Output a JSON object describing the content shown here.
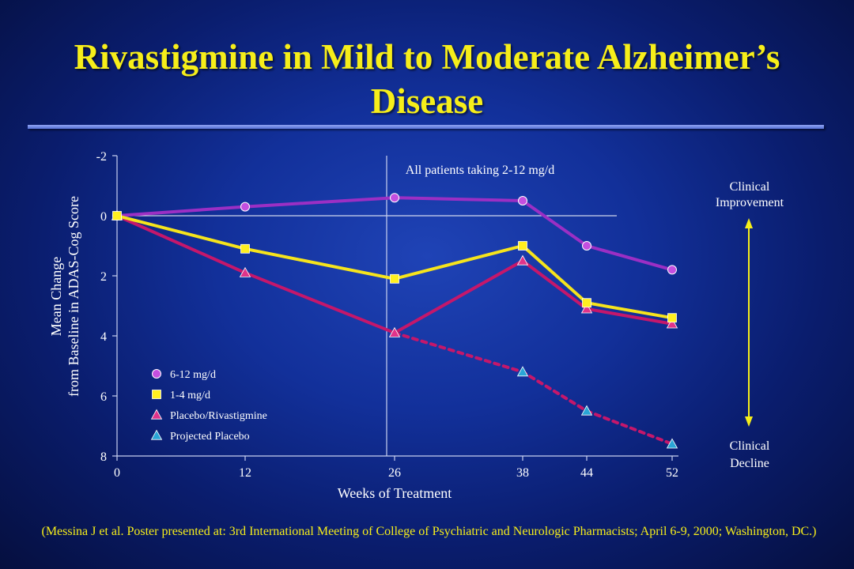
{
  "slide": {
    "title": "Rivastigmine in Mild to Moderate Alzheimer’s Disease",
    "citation": "(Messina J et al. Poster presented at: 3rd International Meeting of College of Psychiatric and Neurologic Pharmacists; April 6-9, 2000; Washington, DC.)",
    "colors": {
      "title": "#f6ee1a",
      "background": "#12309a",
      "axis": "#c8d0f0"
    }
  },
  "chart_data": {
    "type": "line",
    "title": "",
    "xlabel": "Weeks of Treatment",
    "ylabel_lines": [
      "Mean Change",
      "from Baseline in ADAS-Cog Score"
    ],
    "x": [
      0,
      12,
      26,
      38,
      44,
      52
    ],
    "x_tick_labels": [
      "0",
      "12",
      "26",
      "38",
      "44",
      "52"
    ],
    "y_ticks": [
      -2,
      0,
      2,
      4,
      6,
      8
    ],
    "y_tick_labels": [
      "-2",
      "0",
      "2",
      "4",
      "6",
      "8"
    ],
    "ylim": [
      -2,
      8
    ],
    "y_inverted": true,
    "grid": false,
    "annotation": "All patients taking 2-12 mg/d",
    "annotation_boundary_week": 26,
    "right_labels": {
      "top": [
        "Clinical",
        "Improvement"
      ],
      "bottom": [
        "Clinical",
        "Decline"
      ]
    },
    "legend_position": "bottom-left",
    "series": [
      {
        "name": "6-12 mg/d",
        "marker": "circle",
        "color": "#9b2fc4",
        "marker_fill": "#c44fe0",
        "dashed": false,
        "points": [
          [
            0,
            0
          ],
          [
            12,
            -0.3
          ],
          [
            26,
            -0.6
          ],
          [
            38,
            -0.5
          ],
          [
            44,
            1.0
          ],
          [
            52,
            1.8
          ]
        ]
      },
      {
        "name": "1-4 mg/d",
        "marker": "square",
        "color": "#f6e41c",
        "marker_fill": "#ffef20",
        "dashed": false,
        "points": [
          [
            0,
            0
          ],
          [
            12,
            1.1
          ],
          [
            26,
            2.1
          ],
          [
            38,
            1.0
          ],
          [
            44,
            2.9
          ],
          [
            52,
            3.4
          ]
        ]
      },
      {
        "name": "Placebo/Rivastigmine",
        "marker": "triangle",
        "color": "#c5176b",
        "marker_fill": "#e0338a",
        "dashed": false,
        "points": [
          [
            0,
            0
          ],
          [
            12,
            1.9
          ],
          [
            26,
            3.9
          ],
          [
            38,
            1.5
          ],
          [
            44,
            3.1
          ],
          [
            52,
            3.6
          ]
        ]
      },
      {
        "name": "Projected Placebo",
        "marker": "triangle",
        "color": "#c5176b",
        "marker_fill": "#2aa6d6",
        "dashed": true,
        "points": [
          [
            26,
            3.9
          ],
          [
            38,
            5.2
          ],
          [
            44,
            6.5
          ],
          [
            52,
            7.6
          ]
        ]
      }
    ]
  }
}
